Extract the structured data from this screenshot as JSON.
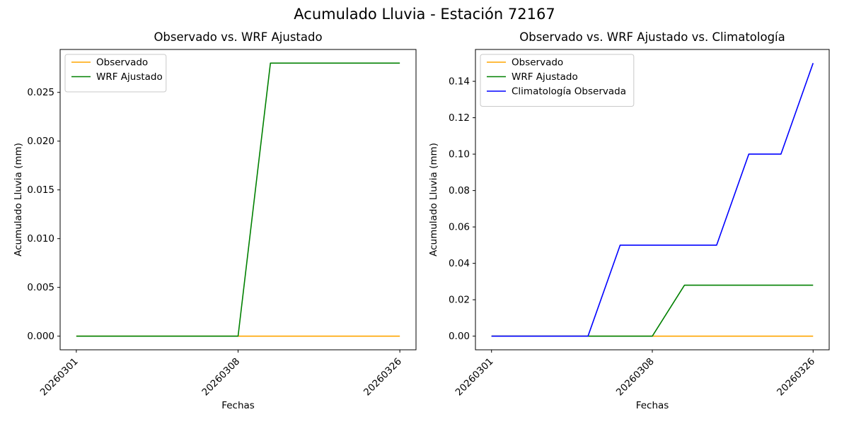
{
  "figure": {
    "title": "Acumulado Lluvia - Estación 72167",
    "background": "#ffffff",
    "text_color": "#000000"
  },
  "chart_data": [
    {
      "type": "line",
      "title": "Observado vs. WRF Ajustado",
      "xlabel": "Fechas",
      "ylabel": "Acumulado Lluvia (mm)",
      "legend_position": "upper-left",
      "grid": false,
      "xlim": [
        -0.5,
        10.5
      ],
      "ylim": [
        -0.0014,
        0.0294
      ],
      "x_tick_positions": [
        0,
        5,
        10
      ],
      "x_tick_labels": [
        "20260301",
        "20260308",
        "20260326"
      ],
      "y_tick_values": [
        0.0,
        0.005,
        0.01,
        0.015,
        0.02,
        0.025
      ],
      "y_tick_labels": [
        "0.000",
        "0.005",
        "0.010",
        "0.015",
        "0.020",
        "0.025"
      ],
      "series": [
        {
          "name": "Observado",
          "color": "#FFA500",
          "values": [
            0,
            0,
            0,
            0,
            0,
            0,
            0,
            0,
            0,
            0,
            0
          ]
        },
        {
          "name": "WRF Ajustado",
          "color": "#008000",
          "values": [
            0,
            0,
            0,
            0,
            0,
            0,
            0.028,
            0.028,
            0.028,
            0.028,
            0.028
          ]
        }
      ]
    },
    {
      "type": "line",
      "title": "Observado vs. WRF Ajustado vs. Climatología",
      "xlabel": "Fechas",
      "ylabel": "Acumulado Lluvia (mm)",
      "legend_position": "upper-left",
      "grid": false,
      "xlim": [
        -0.5,
        10.5
      ],
      "ylim": [
        -0.0075,
        0.1575
      ],
      "x_tick_positions": [
        0,
        5,
        10
      ],
      "x_tick_labels": [
        "20260301",
        "20260308",
        "20260326"
      ],
      "y_tick_values": [
        0.0,
        0.02,
        0.04,
        0.06,
        0.08,
        0.1,
        0.12,
        0.14
      ],
      "y_tick_labels": [
        "0.00",
        "0.02",
        "0.04",
        "0.06",
        "0.08",
        "0.10",
        "0.12",
        "0.14"
      ],
      "series": [
        {
          "name": "Observado",
          "color": "#FFA500",
          "values": [
            0,
            0,
            0,
            0,
            0,
            0,
            0,
            0,
            0,
            0,
            0
          ]
        },
        {
          "name": "WRF Ajustado",
          "color": "#008000",
          "values": [
            0,
            0,
            0,
            0,
            0,
            0,
            0.028,
            0.028,
            0.028,
            0.028,
            0.028
          ]
        },
        {
          "name": "Climatología Observada",
          "color": "#0000FF",
          "values": [
            0,
            0,
            0,
            0,
            0.05,
            0.05,
            0.05,
            0.05,
            0.1,
            0.1,
            0.15
          ]
        }
      ]
    }
  ]
}
